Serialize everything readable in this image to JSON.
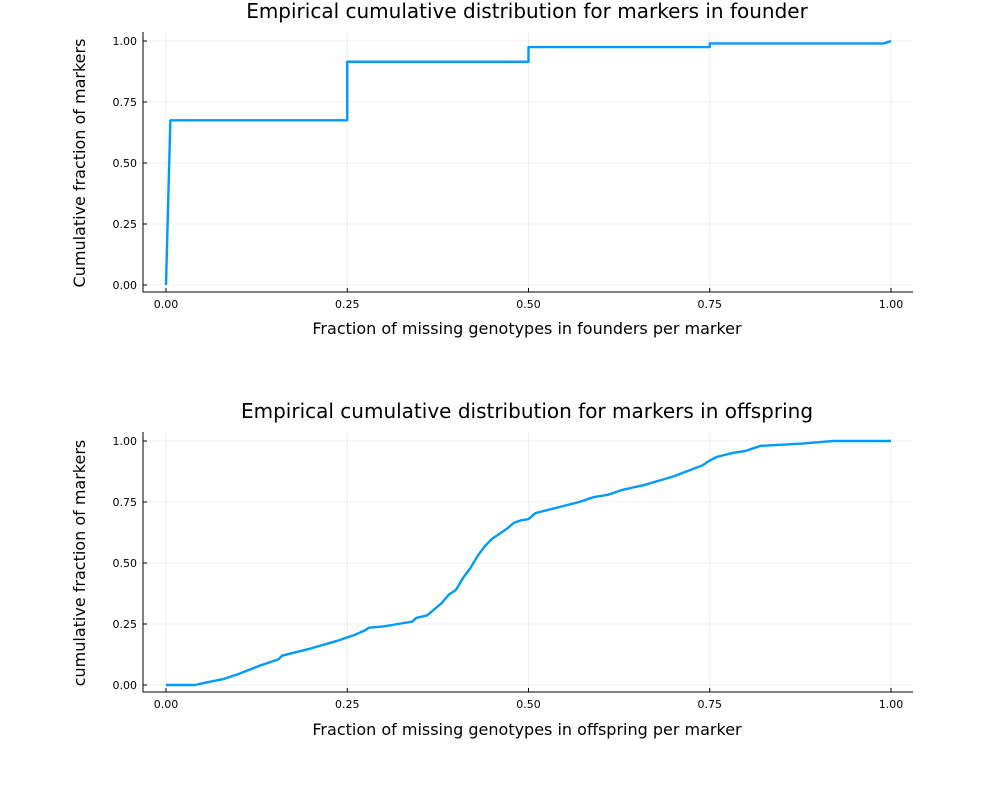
{
  "chart_data": [
    {
      "type": "line",
      "title": "Empirical cumulative distribution for markers in founder",
      "xlabel": "Fraction of missing genotypes in founders per marker",
      "ylabel": "Cumulative fraction of markers",
      "xlim": [
        0,
        1
      ],
      "ylim": [
        0,
        1
      ],
      "grid": true,
      "legend": "none",
      "color": "#009af9",
      "xticks": [
        0,
        0.25,
        0.5,
        0.75,
        1
      ],
      "xtick_labels": [
        "0.00",
        "0.25",
        "0.50",
        "0.75",
        "1.00"
      ],
      "yticks": [
        0,
        0.25,
        0.5,
        0.75,
        1
      ],
      "ytick_labels": [
        "0.00",
        "0.25",
        "0.50",
        "0.75",
        "1.00"
      ],
      "series": [
        {
          "x": [
            0,
            0.006,
            0.25,
            0.25,
            0.5,
            0.5,
            0.75,
            0.75,
            0.99,
            1.0
          ],
          "y": [
            0,
            0.675,
            0.675,
            0.915,
            0.915,
            0.975,
            0.975,
            0.99,
            0.99,
            1.0
          ]
        }
      ]
    },
    {
      "type": "line",
      "title": "Empirical cumulative distribution for markers in offspring",
      "xlabel": "Fraction of missing genotypes in offspring per marker",
      "ylabel": "cumulative fraction of markers",
      "xlim": [
        0,
        1
      ],
      "ylim": [
        0,
        1
      ],
      "grid": true,
      "legend": "none",
      "color": "#009af9",
      "xticks": [
        0,
        0.25,
        0.5,
        0.75,
        1
      ],
      "xtick_labels": [
        "0.00",
        "0.25",
        "0.50",
        "0.75",
        "1.00"
      ],
      "yticks": [
        0,
        0.25,
        0.5,
        0.75,
        1
      ],
      "ytick_labels": [
        "0.00",
        "0.25",
        "0.50",
        "0.75",
        "1.00"
      ],
      "series": [
        {
          "x": [
            0,
            0.04,
            0.055,
            0.08,
            0.1,
            0.13,
            0.155,
            0.16,
            0.18,
            0.2,
            0.235,
            0.25,
            0.26,
            0.275,
            0.28,
            0.3,
            0.32,
            0.34,
            0.345,
            0.36,
            0.37,
            0.38,
            0.39,
            0.4,
            0.41,
            0.42,
            0.43,
            0.44,
            0.45,
            0.46,
            0.47,
            0.48,
            0.49,
            0.5,
            0.51,
            0.53,
            0.57,
            0.58,
            0.59,
            0.6,
            0.61,
            0.63,
            0.66,
            0.7,
            0.74,
            0.75,
            0.76,
            0.78,
            0.8,
            0.81,
            0.82,
            0.85,
            0.88,
            0.9,
            0.92,
            0.95,
            1.0
          ],
          "y": [
            0,
            0,
            0.01,
            0.025,
            0.045,
            0.08,
            0.105,
            0.12,
            0.135,
            0.15,
            0.18,
            0.195,
            0.205,
            0.225,
            0.235,
            0.24,
            0.25,
            0.26,
            0.275,
            0.285,
            0.31,
            0.335,
            0.37,
            0.39,
            0.44,
            0.48,
            0.53,
            0.57,
            0.6,
            0.62,
            0.64,
            0.665,
            0.675,
            0.68,
            0.705,
            0.72,
            0.75,
            0.76,
            0.77,
            0.775,
            0.78,
            0.8,
            0.82,
            0.855,
            0.9,
            0.92,
            0.935,
            0.95,
            0.96,
            0.97,
            0.98,
            0.985,
            0.99,
            0.995,
            1.0,
            1.0,
            1.0
          ]
        }
      ]
    }
  ]
}
